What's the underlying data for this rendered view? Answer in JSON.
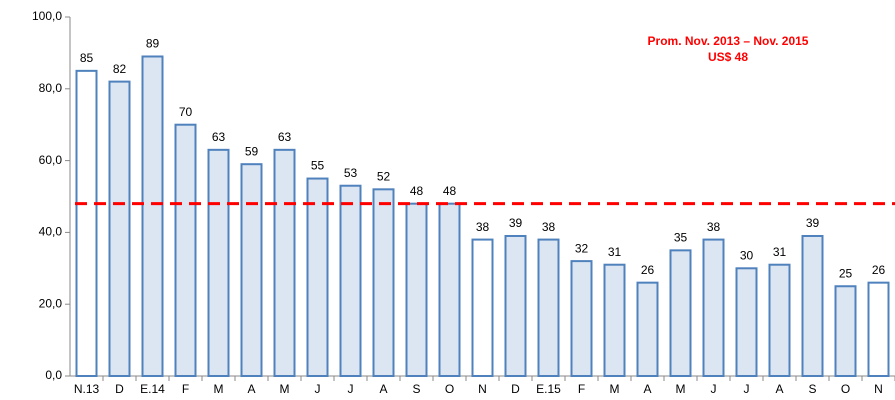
{
  "chart_data": {
    "type": "bar",
    "categories": [
      "N.13",
      "D",
      "E.14",
      "F",
      "M",
      "A",
      "M",
      "J",
      "J",
      "A",
      "S",
      "O",
      "N",
      "D",
      "E.15",
      "F",
      "M",
      "A",
      "M",
      "J",
      "J",
      "A",
      "S",
      "O",
      "N"
    ],
    "values": [
      85,
      82,
      89,
      70,
      63,
      59,
      63,
      55,
      53,
      52,
      48,
      48,
      38,
      39,
      38,
      32,
      31,
      26,
      35,
      38,
      30,
      31,
      39,
      25,
      26
    ],
    "colors": [
      "#ffffff",
      "#dce6f2",
      "#dce6f2",
      "#dce6f2",
      "#dce6f2",
      "#dce6f2",
      "#dce6f2",
      "#dce6f2",
      "#dce6f2",
      "#dce6f2",
      "#dce6f2",
      "#dce6f2",
      "#ffffff",
      "#dce6f2",
      "#dce6f2",
      "#dce6f2",
      "#dce6f2",
      "#dce6f2",
      "#dce6f2",
      "#dce6f2",
      "#dce6f2",
      "#dce6f2",
      "#dce6f2",
      "#dce6f2",
      "#ffffff"
    ],
    "edge_color": "#4f81bd",
    "ylim": [
      0,
      100
    ],
    "yticks": [
      {
        "value": 0,
        "label": "0,0"
      },
      {
        "value": 20,
        "label": "20,0"
      },
      {
        "value": 40,
        "label": "40,0"
      },
      {
        "value": 60,
        "label": "60,0"
      },
      {
        "value": 80,
        "label": "80,0"
      },
      {
        "value": 100,
        "label": "100,0"
      }
    ],
    "reference_line": {
      "value": 48,
      "color": "#ff0000"
    },
    "annotation": [
      "Prom. Nov. 2013 – Nov. 2015",
      "US$ 48"
    ]
  }
}
